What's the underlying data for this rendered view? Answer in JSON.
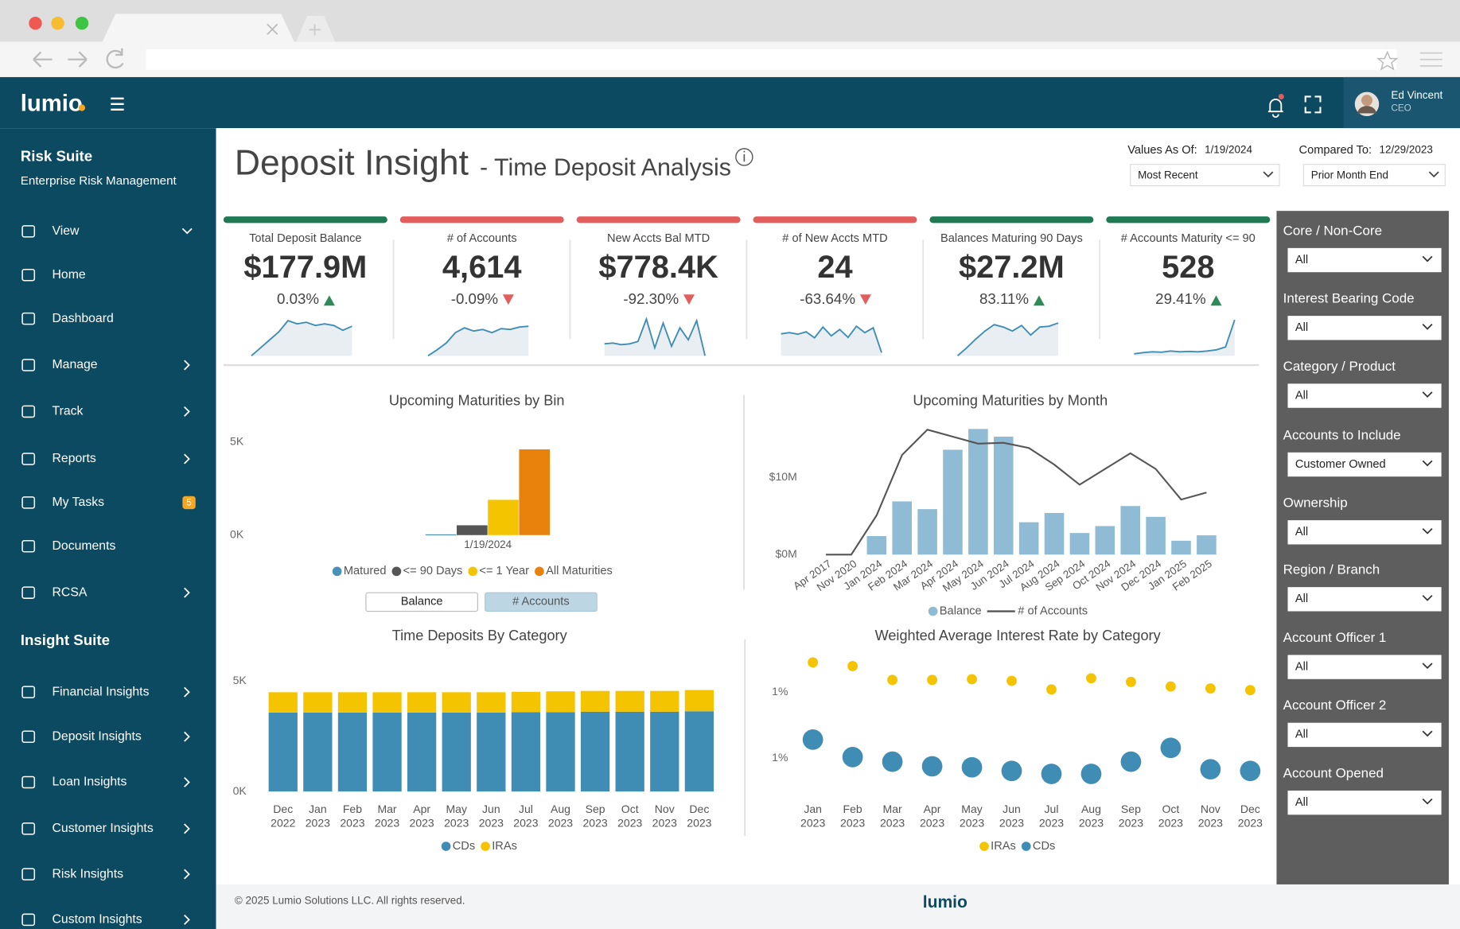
{
  "header": {
    "logo": "lumio",
    "user_name": "Ed Vincent",
    "user_role": "CEO"
  },
  "sidebar": {
    "suite_title": "Risk Suite",
    "suite_subtitle": "Enterprise Risk Management",
    "items": [
      {
        "label": "View"
      },
      {
        "label": "Home"
      },
      {
        "label": "Dashboard"
      },
      {
        "label": "Manage"
      },
      {
        "label": "Track"
      },
      {
        "label": "Reports"
      },
      {
        "label": "My Tasks",
        "badge": 5
      },
      {
        "label": "Documents"
      },
      {
        "label": "RCSA"
      }
    ],
    "insight_title": "Insight Suite",
    "insight_items": [
      {
        "label": "Financial Insights"
      },
      {
        "label": "Deposit Insights"
      },
      {
        "label": "Loan Insights"
      },
      {
        "label": "Customer Insights"
      },
      {
        "label": "Risk Insights"
      },
      {
        "label": "Custom Insights"
      }
    ]
  },
  "title": {
    "main": "Deposit Insight",
    "sub": "- Time Deposit Analysis"
  },
  "values_as_of": {
    "label": "Values As Of:",
    "date": "1/19/2024",
    "selection": "Most Recent"
  },
  "compared_to": {
    "label": "Compared To:",
    "date": "12/29/2023",
    "selection": "Prior Month End"
  },
  "kpis": [
    {
      "label": "Total Deposit Balance",
      "value": "$177.9M",
      "change": "0.03%",
      "direction": "up",
      "trend": [
        0,
        20,
        40,
        60,
        88,
        80,
        84,
        76,
        80,
        76,
        64,
        74
      ]
    },
    {
      "label": "# of Accounts",
      "value": "4,614",
      "change": "-0.09%",
      "direction": "down",
      "trend": [
        0,
        15,
        32,
        58,
        70,
        62,
        66,
        58,
        68,
        66,
        72,
        74
      ]
    },
    {
      "label": "New Accts Bal MTD",
      "value": "$778.4K",
      "change": "-92.30%",
      "direction": "down",
      "trend": [
        30,
        32,
        28,
        30,
        36,
        92,
        20,
        82,
        24,
        70,
        40,
        88,
        0
      ]
    },
    {
      "label": "# of New Accts MTD",
      "value": "24",
      "change": "-63.64%",
      "direction": "down",
      "trend": [
        55,
        58,
        54,
        60,
        45,
        72,
        50,
        66,
        46,
        74,
        58,
        70,
        8
      ]
    },
    {
      "label": "Balances Maturing 90 Days",
      "value": "$27.2M",
      "change": "83.11%",
      "direction": "up",
      "trend": [
        0,
        20,
        42,
        62,
        78,
        72,
        62,
        76,
        52,
        72,
        74,
        82
      ]
    },
    {
      "label": "# Accounts Maturity <= 90",
      "value": "528",
      "change": "29.41%",
      "direction": "up",
      "trend": [
        5,
        8,
        10,
        9,
        12,
        10,
        11,
        10,
        12,
        15,
        22,
        90
      ]
    }
  ],
  "filters": [
    {
      "label": "Core / Non-Core",
      "value": "All"
    },
    {
      "label": "Interest Bearing Code",
      "value": "All"
    },
    {
      "label": "Category / Product",
      "value": "All"
    },
    {
      "label": "Accounts to Include",
      "value": "Customer Owned"
    },
    {
      "label": "Ownership",
      "value": "All"
    },
    {
      "label": "Region / Branch",
      "value": "All"
    },
    {
      "label": "Account Officer 1",
      "value": "All"
    },
    {
      "label": "Account Officer 2",
      "value": "All"
    },
    {
      "label": "Account Opened",
      "value": "All"
    }
  ],
  "charts": [
    {
      "type": "bar",
      "title": "Upcoming Maturities by Bin",
      "categories": [
        "1/19/2024"
      ],
      "series": [
        {
          "name": "Matured",
          "color": "#4a90b8",
          "values": [
            40
          ]
        },
        {
          "name": "<= 90 Days",
          "color": "#555555",
          "values": [
            528
          ]
        },
        {
          "name": "<= 1 Year",
          "color": "#f5c400",
          "values": [
            1900
          ]
        },
        {
          "name": "All Maturities",
          "color": "#e8820c",
          "values": [
            4614
          ]
        }
      ],
      "ylim": [
        0,
        5000
      ],
      "yticks": [
        {
          "value": 0,
          "label": "0K"
        },
        {
          "value": 5000,
          "label": "5K"
        }
      ],
      "buttons": [
        "Balance",
        "# Accounts"
      ]
    },
    {
      "type": "bar-line",
      "title": "Upcoming Maturities by Month",
      "categories": [
        "Apr 2017",
        "Nov 2020",
        "Jan 2024",
        "Feb 2024",
        "Mar 2024",
        "Apr 2024",
        "May 2024",
        "Jun 2024",
        "Jul 2024",
        "Aug 2024",
        "Sep 2024",
        "Oct 2024",
        "Nov 2024",
        "Dec 2024",
        "Jan 2025",
        "Feb 2025"
      ],
      "series": [
        {
          "name": "Balance",
          "color": "#8fbcd4",
          "values": [
            0,
            0,
            2400000,
            6900000,
            5900000,
            13600000,
            16300000,
            15300000,
            4200000,
            5400000,
            2800000,
            3700000,
            6300000,
            4900000,
            1800000,
            2500000
          ]
        },
        {
          "name": "# of Accounts",
          "color": "#555555",
          "type": "line",
          "axis": "y2",
          "values": [
            0,
            0,
            45,
            114,
            143,
            135,
            127,
            128,
            122,
            103,
            80,
            98,
            116,
            98,
            63,
            71
          ]
        }
      ],
      "ylim": [
        0,
        17000000
      ],
      "yticks": [
        {
          "value": 0,
          "label": "$0M"
        },
        {
          "value": 10000000,
          "label": "$10M"
        }
      ],
      "y2lim": [
        0,
        150
      ]
    },
    {
      "type": "stacked-bar",
      "title": "Time Deposits By Category",
      "categories": [
        [
          "Dec",
          "2022"
        ],
        [
          "Jan",
          "2023"
        ],
        [
          "Feb",
          "2023"
        ],
        [
          "Mar",
          "2023"
        ],
        [
          "Apr",
          "2023"
        ],
        [
          "May",
          "2023"
        ],
        [
          "Jun",
          "2023"
        ],
        [
          "Jul",
          "2023"
        ],
        [
          "Aug",
          "2023"
        ],
        [
          "Sep",
          "2023"
        ],
        [
          "Oct",
          "2023"
        ],
        [
          "Nov",
          "2023"
        ],
        [
          "Dec",
          "2023"
        ]
      ],
      "series": [
        {
          "name": "CDs",
          "color": "#3f8db5",
          "values": [
            3570,
            3570,
            3570,
            3570,
            3570,
            3570,
            3570,
            3590,
            3590,
            3610,
            3610,
            3610,
            3630
          ]
        },
        {
          "name": "IRAs",
          "color": "#f5c400",
          "values": [
            920,
            920,
            920,
            920,
            920,
            920,
            920,
            920,
            940,
            940,
            940,
            940,
            960
          ]
        }
      ],
      "ylim": [
        0,
        5000
      ],
      "yticks": [
        {
          "value": 0,
          "label": "0K"
        },
        {
          "value": 5000,
          "label": "5K"
        }
      ]
    },
    {
      "type": "scatter",
      "title": "Weighted Average Interest Rate by Category",
      "categories": [
        [
          "Jan",
          "2023"
        ],
        [
          "Feb",
          "2023"
        ],
        [
          "Mar",
          "2023"
        ],
        [
          "Apr",
          "2023"
        ],
        [
          "May",
          "2023"
        ],
        [
          "Jun",
          "2023"
        ],
        [
          "Jul",
          "2023"
        ],
        [
          "Aug",
          "2023"
        ],
        [
          "Sep",
          "2023"
        ],
        [
          "Oct",
          "2023"
        ],
        [
          "Nov",
          "2023"
        ],
        [
          "Dec",
          "2023"
        ]
      ],
      "series": [
        {
          "name": "IRAs",
          "color": "#f5c400",
          "values": [
            1.49,
            1.479,
            1.437,
            1.437,
            1.439,
            1.434,
            1.408,
            1.442,
            1.431,
            1.417,
            1.411,
            1.406
          ]
        },
        {
          "name": "CDs",
          "color": "#3f8db5",
          "values": [
            1.256,
            1.203,
            1.189,
            1.175,
            1.172,
            1.161,
            1.152,
            1.152,
            1.189,
            1.231,
            1.166,
            1.161
          ]
        }
      ],
      "ylim": [
        1.09,
        1.53
      ],
      "yticks": [
        {
          "value": 1.2,
          "label": "1%"
        },
        {
          "value": 1.4,
          "label": "1%"
        }
      ]
    }
  ],
  "footer": {
    "copyright": "© 2025 Lumio Solutions LLC. All rights reserved.",
    "logo": "lumio"
  }
}
